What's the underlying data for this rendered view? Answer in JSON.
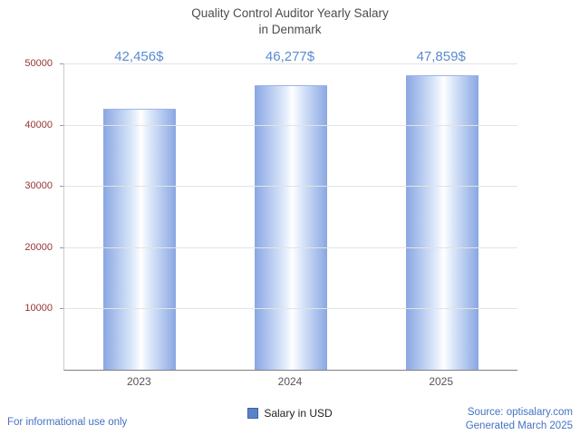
{
  "title": {
    "line1": "Quality Control Auditor Yearly Salary",
    "line2": "in Denmark"
  },
  "chart_data": {
    "type": "bar",
    "categories": [
      "2023",
      "2024",
      "2025"
    ],
    "values": [
      42456,
      46277,
      47859
    ],
    "value_labels": [
      "42,456$",
      "46,277$",
      "47,859$"
    ],
    "series_name": "Salary in USD",
    "title": "Quality Control Auditor Yearly Salary in Denmark",
    "xlabel": "",
    "ylabel": "",
    "ylim": [
      0,
      50000
    ],
    "yticks": [
      10000,
      20000,
      30000,
      40000,
      50000
    ],
    "ytick_labels": [
      "10000",
      "20000",
      "30000",
      "40000",
      "50000"
    ],
    "grid": "horizontal",
    "legend_position": "bottom-center",
    "colors": {
      "bar_edge": "#8aa7e3",
      "bar_center": "#ffffff",
      "value_label": "#5b8ad2",
      "ytick_label": "#993333",
      "xtick_label": "#555555",
      "title": "#4d4d4d",
      "footer_link": "#4472c4",
      "legend_swatch": "#5b84c8"
    }
  },
  "legend": {
    "label": "Salary in USD"
  },
  "footer": {
    "left": "For informational use only",
    "source": "Source: optisalary.com",
    "generated": "Generated March 2025"
  }
}
